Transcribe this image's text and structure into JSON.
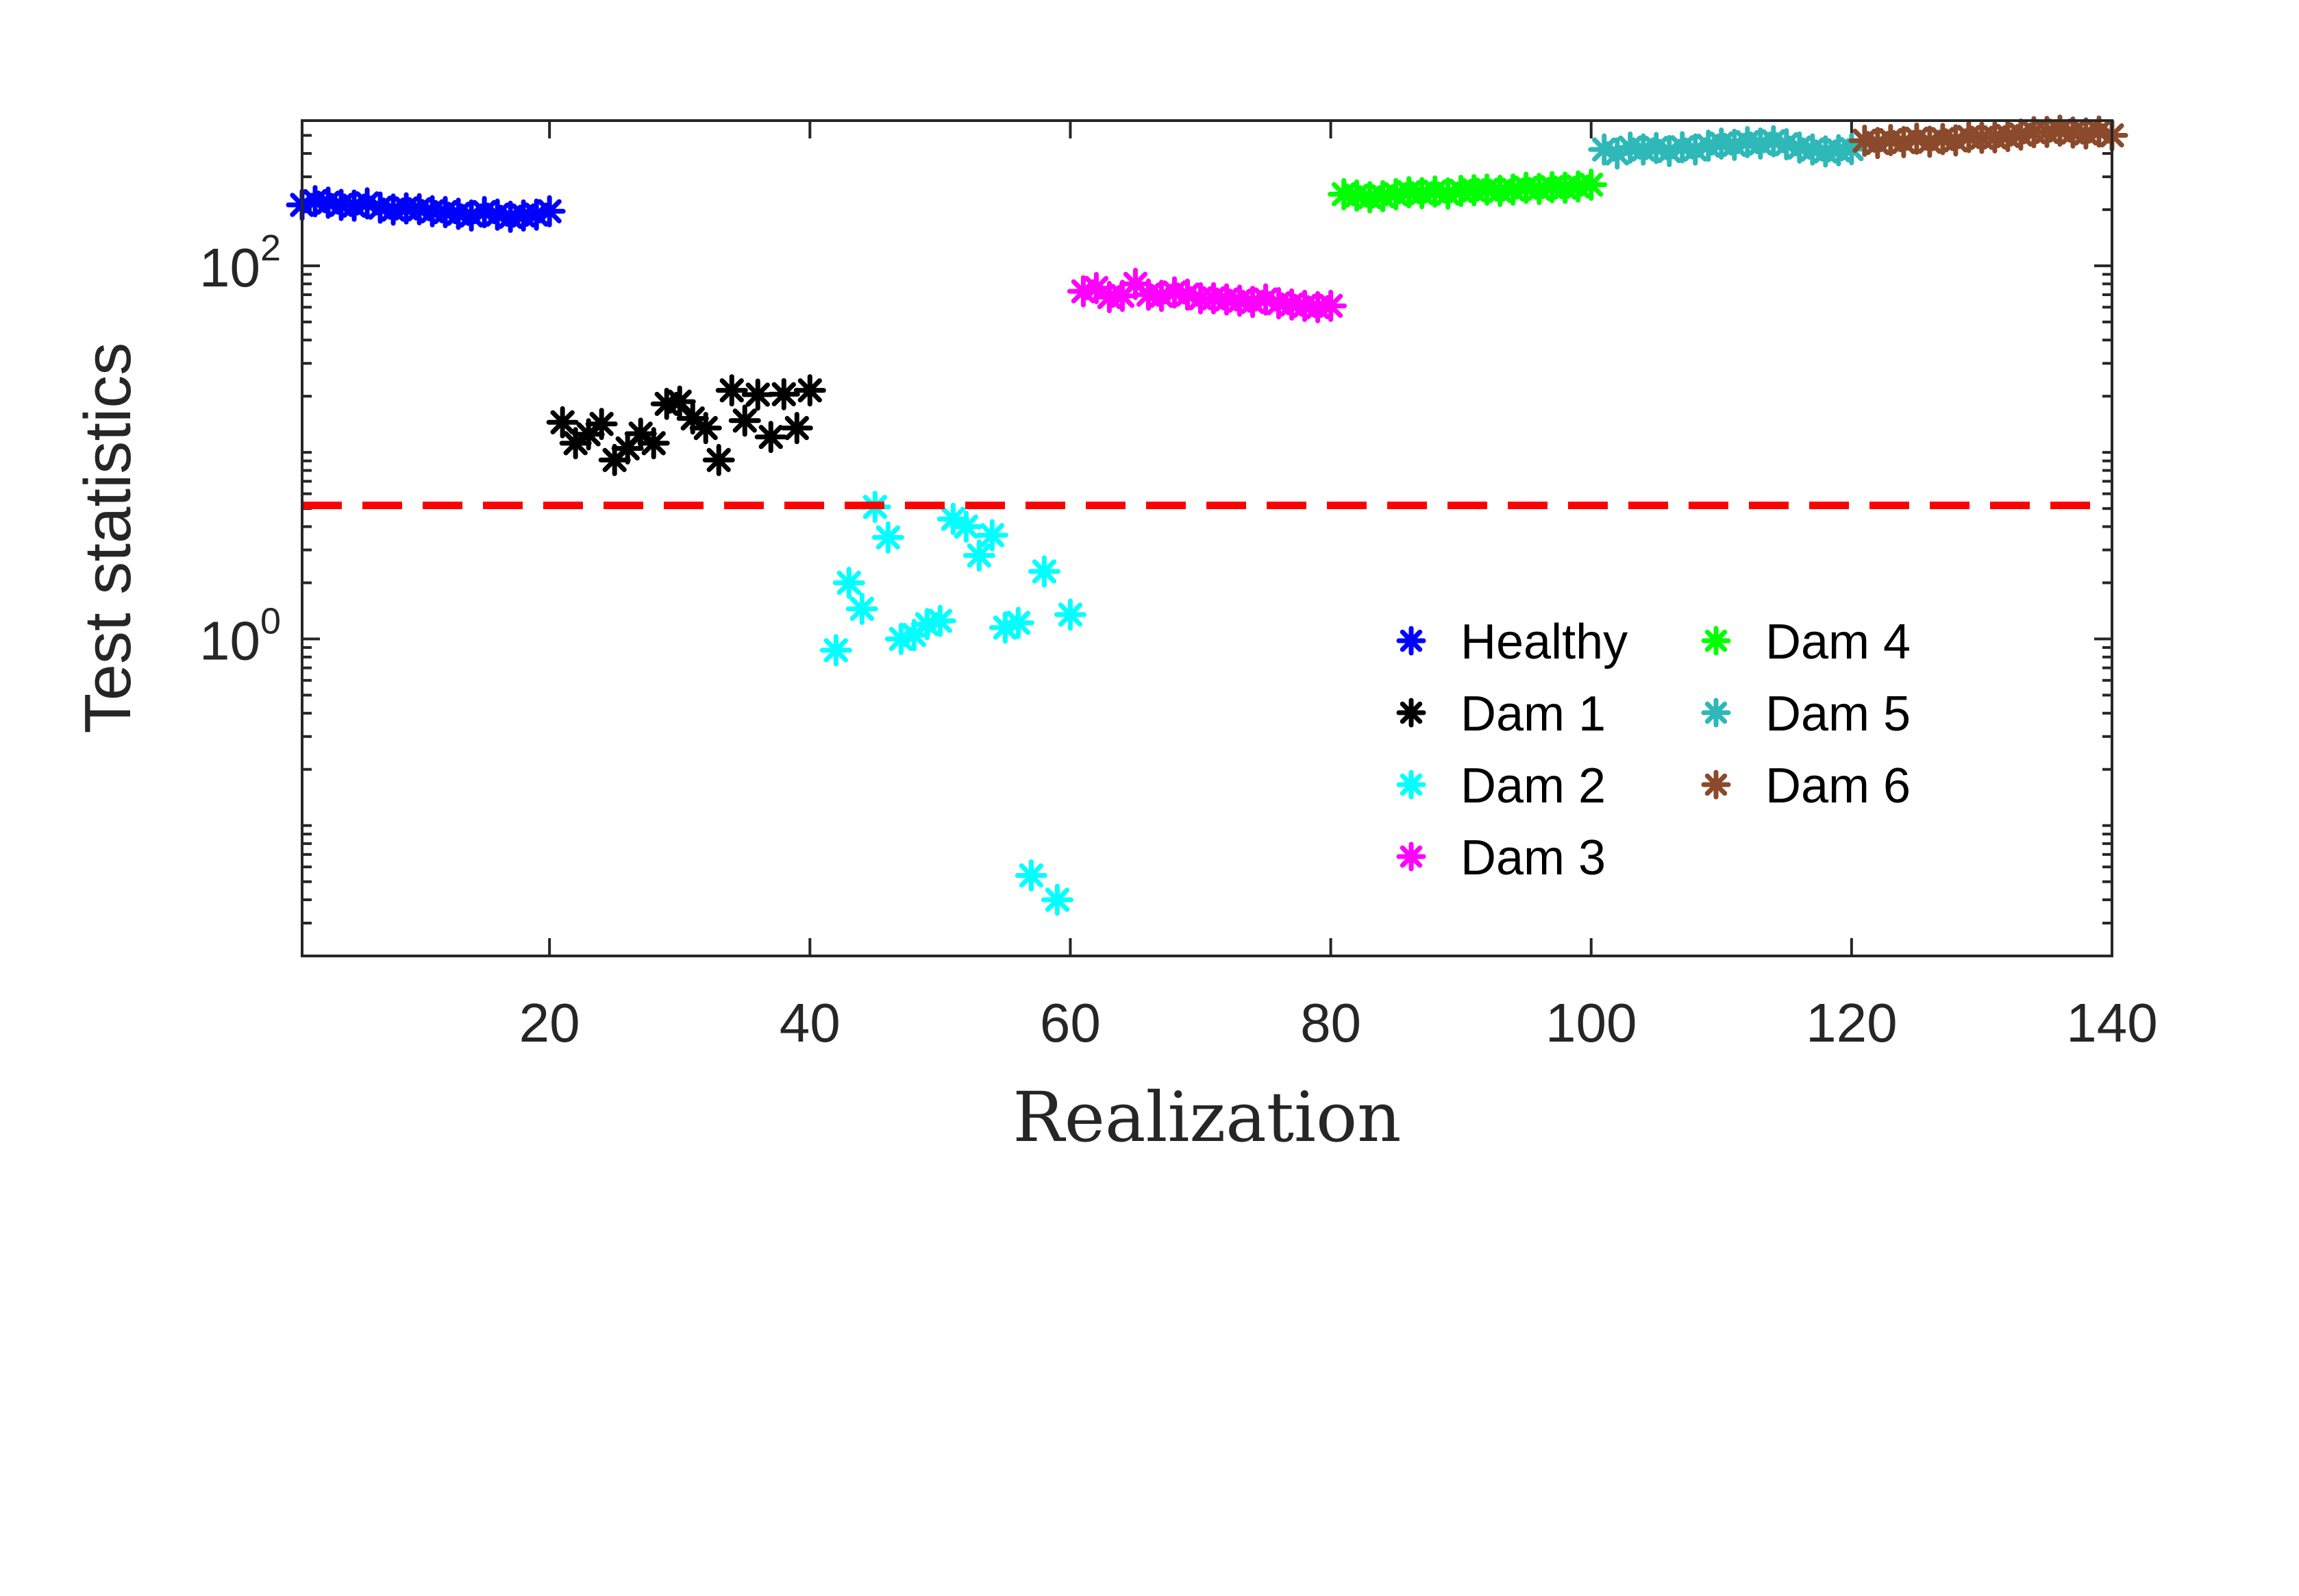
{
  "chart_data": {
    "type": "scatter",
    "xlabel": "Realization",
    "ylabel": "Test statistics",
    "y_scale": "log",
    "xlim": [
      1,
      140
    ],
    "ylim": [
      0.02,
      600
    ],
    "x_ticks": [
      20,
      40,
      60,
      80,
      100,
      120,
      140
    ],
    "x_tick_labels": [
      "20",
      "40",
      "60",
      "80",
      "100",
      "120",
      "140"
    ],
    "y_ticks": [
      1,
      100
    ],
    "y_tick_labels": [
      {
        "base": "10",
        "exp": "0"
      },
      {
        "base": "10",
        "exp": "2"
      }
    ],
    "threshold": {
      "value": 5.2,
      "color": "#ff0000",
      "style": "dashed"
    },
    "marker": "asterisk",
    "legend": {
      "placement": "lower-right",
      "columns": 2
    },
    "series": [
      {
        "name": "Healthy",
        "color": "#0000ff",
        "x": [
          1,
          2,
          3,
          4,
          5,
          6,
          7,
          8,
          9,
          10,
          11,
          12,
          13,
          14,
          15,
          16,
          17,
          18,
          19,
          20
        ],
        "values": [
          212,
          222,
          218,
          212,
          210,
          216,
          205,
          200,
          203,
          201,
          196,
          194,
          190,
          186,
          194,
          188,
          183,
          186,
          188,
          196
        ]
      },
      {
        "name": "Dam 1",
        "color": "#000000",
        "x": [
          21,
          22,
          23,
          24,
          25,
          26,
          27,
          28,
          29,
          30,
          31,
          32,
          33,
          34,
          35,
          36,
          37,
          38,
          39,
          40
        ],
        "values": [
          14.5,
          11.2,
          12.5,
          14.2,
          9.1,
          10.5,
          12.6,
          11.2,
          18.2,
          18.7,
          15.2,
          13.5,
          9.1,
          21.5,
          14.8,
          20.4,
          12.1,
          20.5,
          13.5,
          21.5
        ]
      },
      {
        "name": "Dam 2",
        "color": "#00ffff",
        "x": [
          42,
          43,
          44,
          45,
          46,
          47,
          48,
          49,
          50,
          51,
          52,
          53,
          54,
          55,
          56,
          57,
          58,
          59,
          60
        ],
        "values": [
          0.87,
          2.0,
          1.45,
          5.1,
          3.5,
          1.0,
          1.05,
          1.2,
          1.25,
          4.4,
          4.0,
          2.8,
          3.6,
          1.15,
          1.22,
          0.054,
          2.3,
          0.04,
          1.35
        ]
      },
      {
        "name": "Dam 3",
        "color": "#ff00ff",
        "x": [
          61,
          62,
          63,
          64,
          65,
          66,
          67,
          68,
          69,
          70,
          71,
          72,
          73,
          74,
          75,
          76,
          77,
          78,
          79,
          80
        ],
        "values": [
          73,
          76,
          68,
          69,
          80,
          70,
          69,
          72,
          70,
          67,
          67,
          66,
          65,
          64,
          66,
          63,
          62,
          61,
          60,
          61
        ]
      },
      {
        "name": "Dam 4",
        "color": "#00ff00",
        "x": [
          81,
          82,
          83,
          84,
          85,
          86,
          87,
          88,
          89,
          90,
          91,
          92,
          93,
          94,
          95,
          96,
          97,
          98,
          99,
          100
        ],
        "values": [
          242,
          238,
          233,
          236,
          242,
          248,
          245,
          250,
          244,
          252,
          254,
          256,
          252,
          256,
          262,
          258,
          264,
          262,
          266,
          272
        ]
      },
      {
        "name": "Dam 5",
        "color": "#2eb8b8",
        "x": [
          101,
          102,
          103,
          104,
          105,
          106,
          107,
          108,
          109,
          110,
          111,
          112,
          113,
          114,
          115,
          116,
          117,
          118,
          119,
          120
        ],
        "values": [
          420,
          400,
          430,
          420,
          428,
          412,
          432,
          420,
          440,
          452,
          445,
          460,
          452,
          465,
          448,
          430,
          420,
          410,
          416,
          422
        ]
      },
      {
        "name": "Dam 6",
        "color": "#8b4a2b",
        "x": [
          121,
          122,
          123,
          124,
          125,
          126,
          127,
          128,
          129,
          130,
          131,
          132,
          133,
          134,
          135,
          136,
          137,
          138,
          139,
          140
        ],
        "values": [
          468,
          455,
          472,
          460,
          480,
          462,
          478,
          470,
          490,
          485,
          488,
          496,
          505,
          520,
          522,
          530,
          518,
          512,
          524,
          500
        ]
      }
    ]
  }
}
